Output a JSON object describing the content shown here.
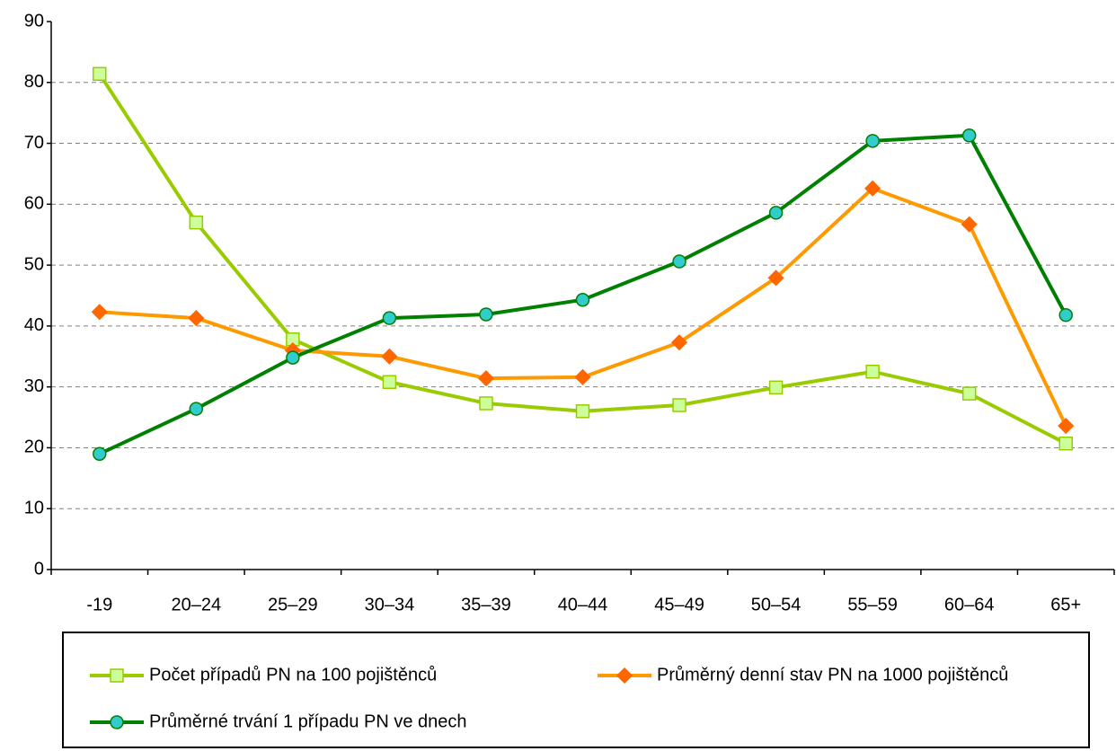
{
  "chart_data": {
    "type": "line",
    "categories": [
      "-19",
      "20–24",
      "25–29",
      "30–34",
      "35–39",
      "40–44",
      "45–49",
      "50–54",
      "55–59",
      "60–64",
      "65+"
    ],
    "series": [
      {
        "name": "Počet případů PN na 100 pojištěnců",
        "color": "#99cc00",
        "marker": "square",
        "marker_color": "#ccff99",
        "values": [
          81.4,
          57.0,
          37.8,
          30.8,
          27.3,
          26.0,
          27.0,
          29.9,
          32.5,
          28.9,
          20.7
        ]
      },
      {
        "name": "Průměrný denní stav PN na 1000 pojištěnců",
        "color": "#ff9900",
        "marker": "diamond",
        "marker_color": "#ff6600",
        "values": [
          42.3,
          41.3,
          36.0,
          35.0,
          31.4,
          31.6,
          37.3,
          47.9,
          62.6,
          56.7,
          23.6
        ]
      },
      {
        "name": "Průměrné trvání 1 případu PN ve dnech",
        "color": "#008000",
        "marker": "circle",
        "marker_color": "#33cccc",
        "values": [
          19.0,
          26.4,
          34.8,
          41.3,
          41.9,
          44.3,
          50.6,
          58.6,
          70.4,
          71.3,
          41.8
        ]
      }
    ],
    "ylim": [
      0,
      90
    ],
    "yticks": [
      0,
      10,
      20,
      30,
      40,
      50,
      60,
      70,
      80,
      90
    ],
    "grid": true,
    "legend": "bottom"
  }
}
